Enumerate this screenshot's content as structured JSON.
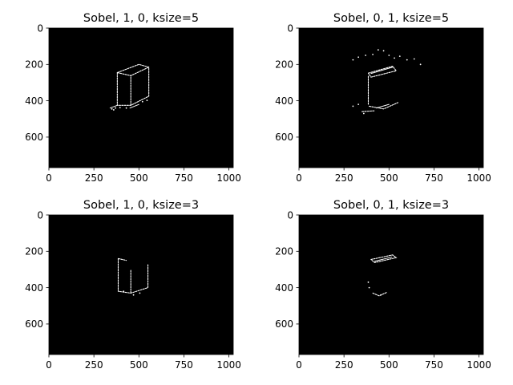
{
  "figure": {
    "panels": [
      {
        "key": "p0",
        "title": "Sobel, 1, 0, ksize=5",
        "xticks": [
          "0",
          "250",
          "500",
          "750",
          "1000"
        ],
        "yticks": [
          "0",
          "200",
          "400",
          "600"
        ]
      },
      {
        "key": "p1",
        "title": "Sobel, 0, 1, ksize=5",
        "xticks": [
          "0",
          "250",
          "500",
          "750",
          "1000"
        ],
        "yticks": [
          "0",
          "200",
          "400",
          "600"
        ]
      },
      {
        "key": "p2",
        "title": "Sobel, 1, 0, ksize=3",
        "xticks": [
          "0",
          "250",
          "500",
          "750",
          "1000"
        ],
        "yticks": [
          "0",
          "200",
          "400",
          "600"
        ]
      },
      {
        "key": "p3",
        "title": "Sobel, 0, 1, ksize=3",
        "xticks": [
          "0",
          "250",
          "500",
          "750",
          "1000"
        ],
        "yticks": [
          "0",
          "200",
          "400",
          "600"
        ]
      }
    ],
    "image_background": "#000000",
    "edge_color": "#ffffff"
  }
}
